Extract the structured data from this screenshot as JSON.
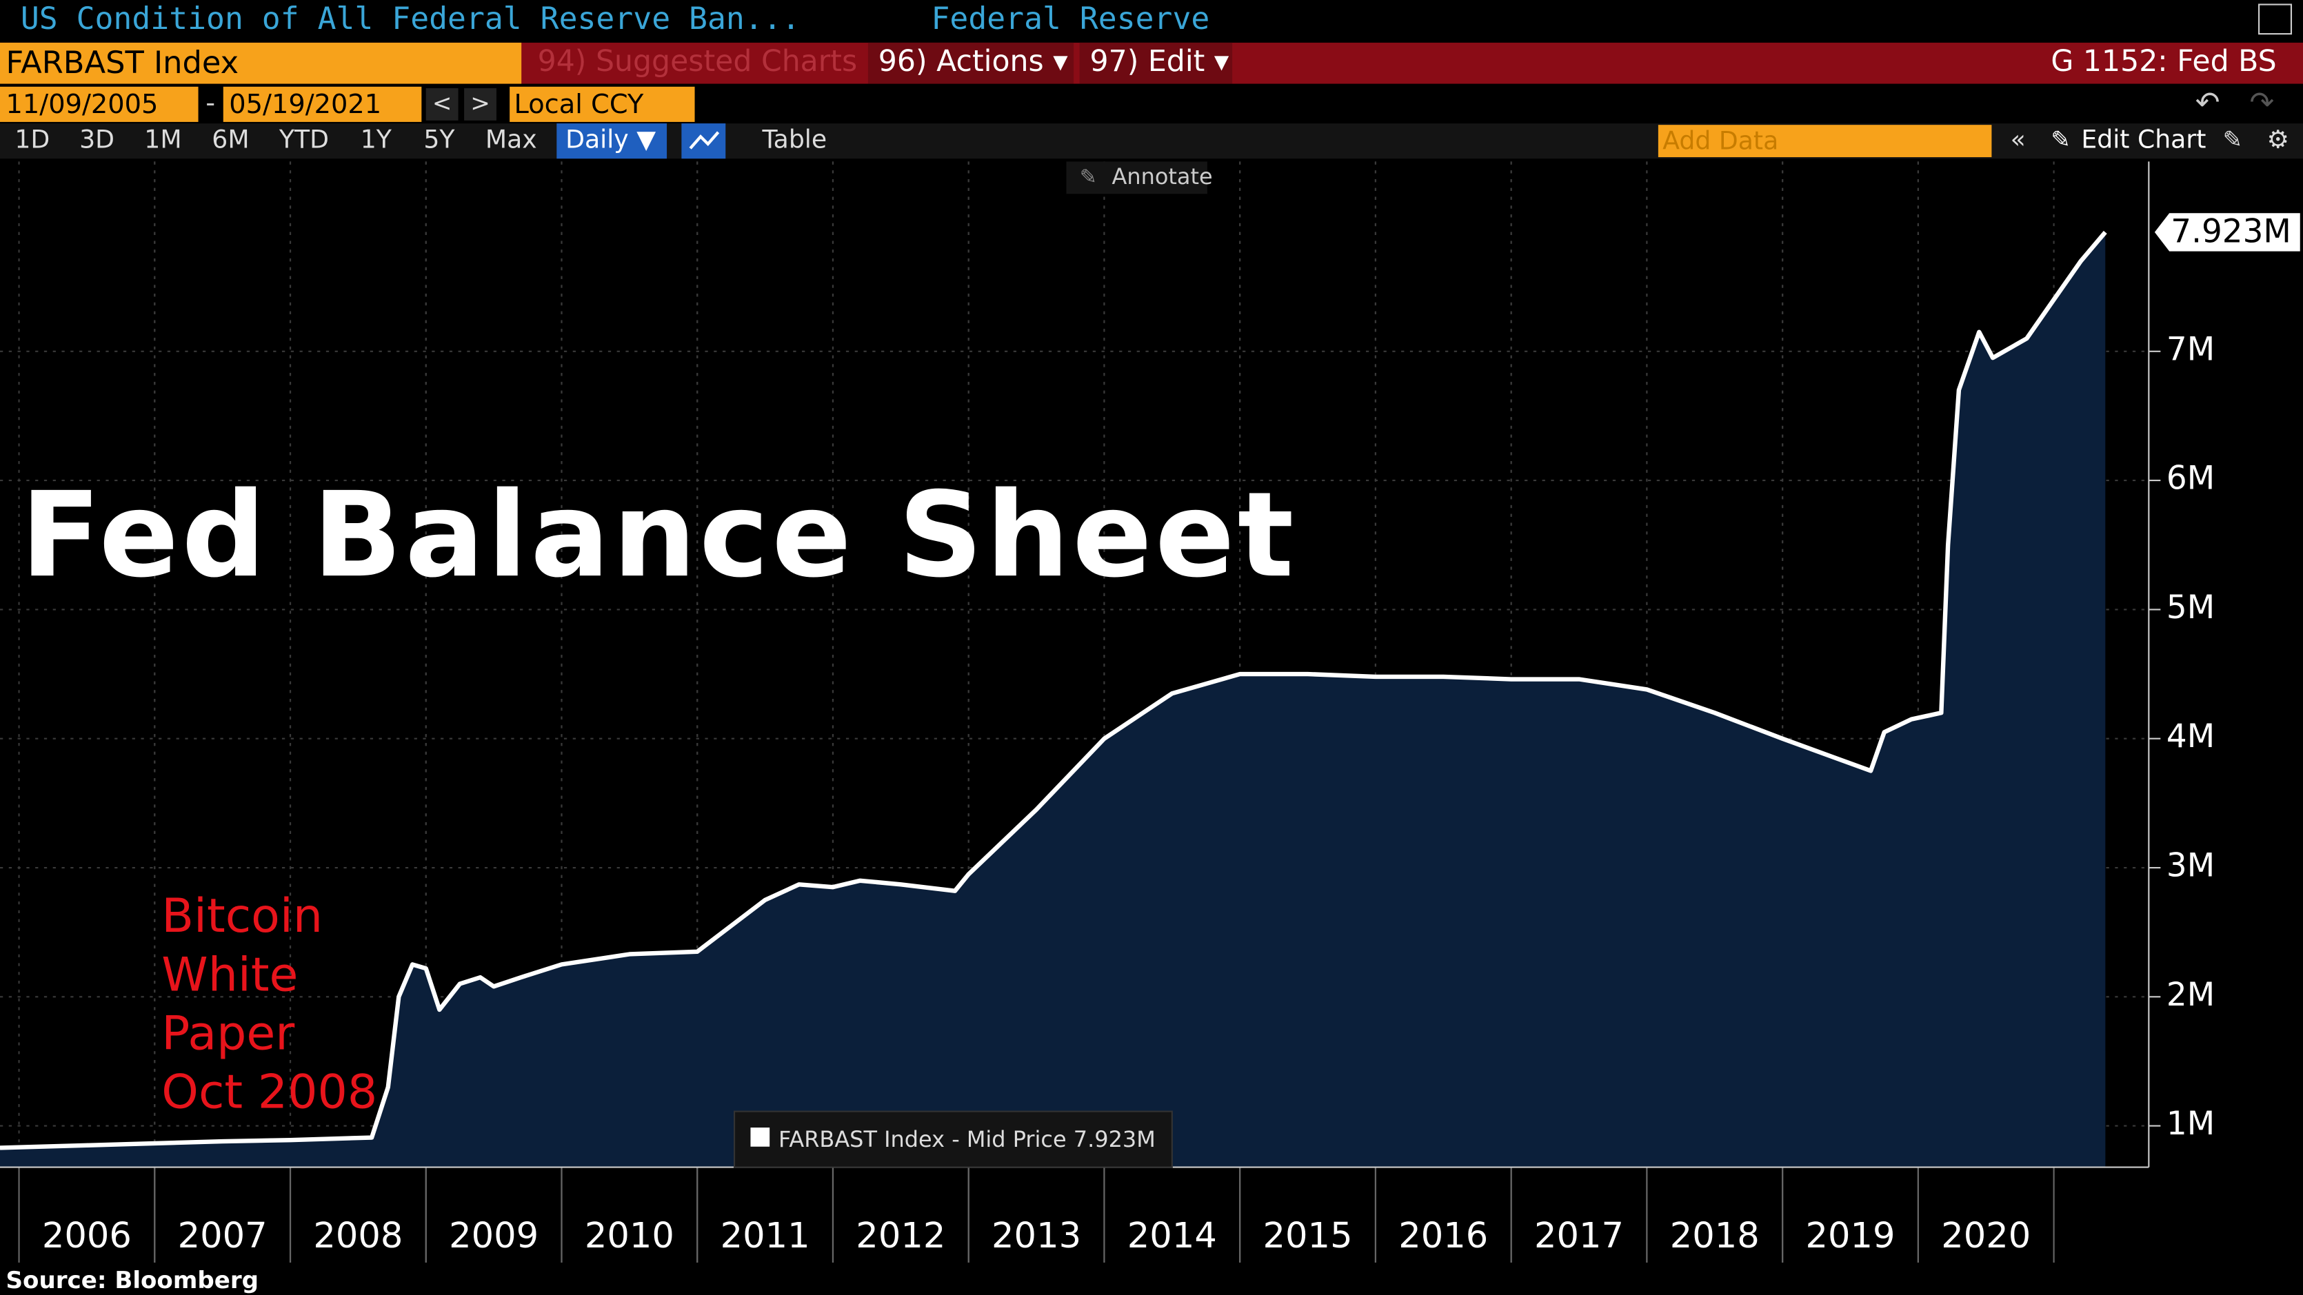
{
  "header": {
    "title": "US Condition of All Federal Reserve Ban...",
    "source_name": "Federal Reserve",
    "ticker": "FARBAST Index",
    "suggested": "94) Suggested Charts",
    "actions": "96) Actions ▾",
    "edit": "97) Edit ▾",
    "page_code": "G 1152: Fed BS"
  },
  "toolbar": {
    "start_date": "11/09/2005",
    "end_date": "05/19/2021",
    "currency": "Local CCY",
    "ranges": [
      "1D",
      "3D",
      "1M",
      "6M",
      "YTD",
      "1Y",
      "5Y",
      "Max"
    ],
    "frequency": "Daily ▼",
    "table": "Table",
    "add_data": "Add Data",
    "edit_chart": "Edit Chart",
    "annotate": "Annotate"
  },
  "chart_data": {
    "type": "line",
    "title": "Fed Balance Sheet",
    "annotation": [
      "Bitcoin",
      "White",
      "Paper",
      "Oct 2008"
    ],
    "x": [
      2005.86,
      2006.5,
      2007.5,
      2008.0,
      2008.6,
      2008.72,
      2008.8,
      2008.9,
      2009.0,
      2009.1,
      2009.25,
      2009.4,
      2009.5,
      2009.7,
      2010.0,
      2010.5,
      2011.0,
      2011.5,
      2011.75,
      2012.0,
      2012.2,
      2012.5,
      2012.9,
      2013.0,
      2013.5,
      2014.0,
      2014.5,
      2015.0,
      2015.5,
      2016.0,
      2016.5,
      2017.0,
      2017.5,
      2018.0,
      2018.5,
      2019.0,
      2019.65,
      2019.75,
      2019.95,
      2020.17,
      2020.22,
      2020.3,
      2020.45,
      2020.55,
      2020.8,
      2021.0,
      2021.2,
      2021.38
    ],
    "series": [
      {
        "name": "FARBAST Index - Mid Price",
        "color": "#ffffff",
        "fill": "#0b1f3a",
        "values": [
          0.83,
          0.85,
          0.88,
          0.89,
          0.91,
          1.3,
          2.0,
          2.25,
          2.22,
          1.9,
          2.1,
          2.15,
          2.08,
          2.15,
          2.25,
          2.33,
          2.35,
          2.75,
          2.87,
          2.85,
          2.9,
          2.87,
          2.82,
          2.95,
          3.45,
          4.0,
          4.35,
          4.5,
          4.5,
          4.48,
          4.48,
          4.46,
          4.46,
          4.38,
          4.2,
          4.0,
          3.75,
          4.05,
          4.15,
          4.2,
          5.5,
          6.7,
          7.15,
          6.95,
          7.1,
          7.4,
          7.7,
          7.923
        ],
        "last_price_label": "7.923M"
      }
    ],
    "xlim": [
      2005.86,
      2021.7
    ],
    "xticks": [
      {
        "value": 2006.5,
        "label": "2006"
      },
      {
        "value": 2007.5,
        "label": "2007"
      },
      {
        "value": 2008.5,
        "label": "2008"
      },
      {
        "value": 2009.5,
        "label": "2009"
      },
      {
        "value": 2010.5,
        "label": "2010"
      },
      {
        "value": 2011.5,
        "label": "2011"
      },
      {
        "value": 2012.5,
        "label": "2012"
      },
      {
        "value": 2013.5,
        "label": "2013"
      },
      {
        "value": 2014.5,
        "label": "2014"
      },
      {
        "value": 2015.5,
        "label": "2015"
      },
      {
        "value": 2016.5,
        "label": "2016"
      },
      {
        "value": 2017.5,
        "label": "2017"
      },
      {
        "value": 2018.5,
        "label": "2018"
      },
      {
        "value": 2019.5,
        "label": "2019"
      },
      {
        "value": 2020.5,
        "label": "2020"
      }
    ],
    "ylim": [
      0.68,
      8.47
    ],
    "yticks": [
      {
        "value": 1,
        "label": "1M"
      },
      {
        "value": 2,
        "label": "2M"
      },
      {
        "value": 3,
        "label": "3M"
      },
      {
        "value": 4,
        "label": "4M"
      },
      {
        "value": 5,
        "label": "5M"
      },
      {
        "value": 6,
        "label": "6M"
      },
      {
        "value": 7,
        "label": "7M"
      }
    ],
    "grid": true
  },
  "footer": {
    "source": "Source: Bloomberg"
  }
}
